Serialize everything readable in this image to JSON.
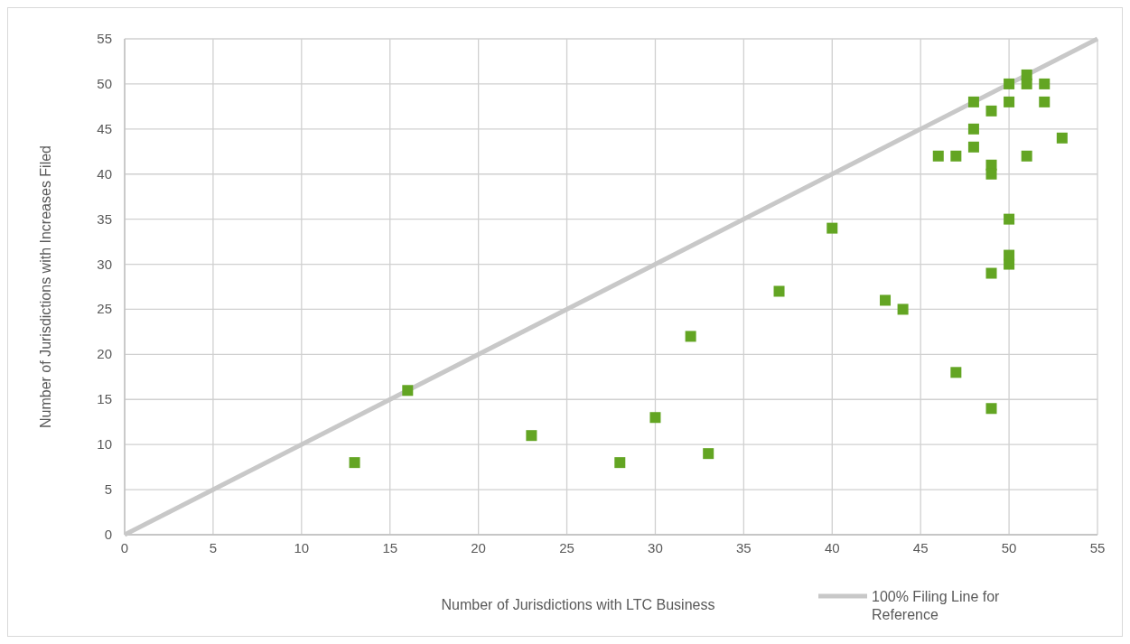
{
  "chart_data": {
    "type": "scatter",
    "xlabel": "Number of Jurisdictions with LTC Business",
    "ylabel": "Number of Jurisdictions with Increases Filed",
    "xlim": [
      0,
      55
    ],
    "xticks": [
      0,
      5,
      10,
      15,
      20,
      25,
      30,
      35,
      40,
      45,
      50,
      55
    ],
    "ylim": [
      0,
      55
    ],
    "yticks": [
      0,
      5,
      10,
      15,
      20,
      25,
      30,
      35,
      40,
      45,
      50,
      55
    ],
    "grid": true,
    "legend": "bottom right",
    "series": [
      {
        "marker": "square",
        "color": "#63a523",
        "x": [
          13,
          16,
          23,
          28,
          30,
          33,
          32,
          37,
          40,
          43,
          44,
          47,
          49,
          46,
          47,
          48,
          48,
          48,
          49,
          49,
          49,
          50,
          50,
          51,
          51,
          52,
          52,
          53,
          51,
          50,
          50,
          50,
          49
        ],
        "values": [
          8,
          16,
          11,
          8,
          13,
          9,
          22,
          27,
          34,
          26,
          25,
          18,
          14,
          42,
          42,
          48,
          45,
          43,
          47,
          41,
          40,
          50,
          48,
          51,
          50,
          50,
          48,
          44,
          42,
          35,
          31,
          30,
          29
        ]
      },
      {
        "type": "line",
        "name": "100% Filing Line for Reference",
        "color": "#c8c8c8",
        "line_style": "solid",
        "x": [
          0,
          55
        ],
        "values": [
          0,
          55
        ]
      }
    ]
  }
}
